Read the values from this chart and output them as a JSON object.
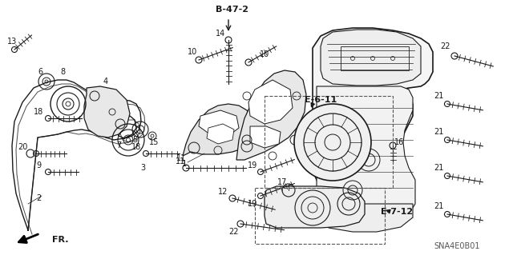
{
  "bg_color": "#ffffff",
  "line_color": "#1a1a1a",
  "fig_width": 6.4,
  "fig_height": 3.19,
  "dpi": 100,
  "watermark": "SNA4E0B01",
  "ref_b47": "B-47-2",
  "ref_e611": "E-6-11",
  "ref_e712": "E-7-12",
  "fr_label": "FR."
}
